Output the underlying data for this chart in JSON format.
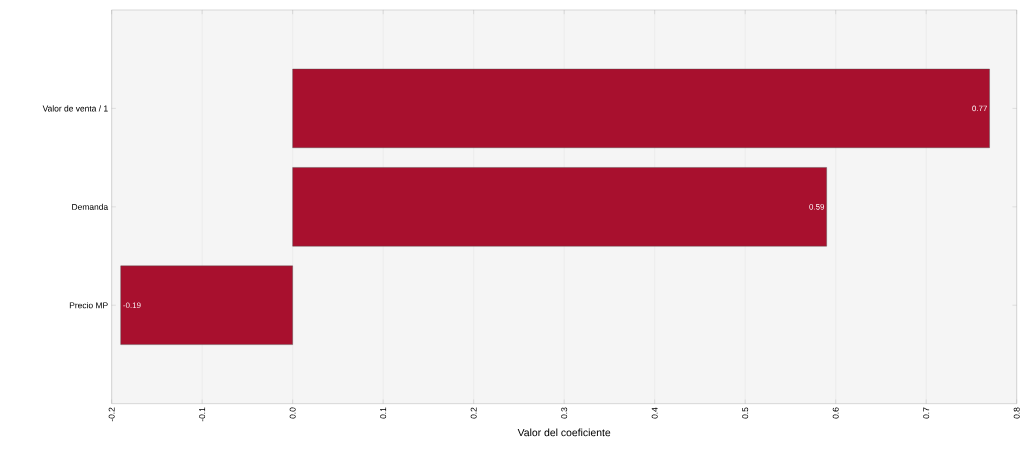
{
  "chart_data": {
    "type": "bar",
    "orientation": "horizontal",
    "xlabel": "Valor del coeficiente",
    "categories": [
      "Valor de venta / 1",
      "Demanda",
      "Precio MP"
    ],
    "values": [
      0.77,
      0.59,
      -0.19
    ],
    "color": "#a8102e",
    "data_labels": true,
    "grid": "x",
    "xlim": [
      -0.2,
      0.8
    ],
    "xticks": [
      -0.2,
      -0.1,
      {
        "value": 0,
        "label": "0.0"
      },
      0.1,
      0.2,
      0.3,
      0.4,
      0.5,
      0.6,
      0.7,
      0.8
    ]
  }
}
